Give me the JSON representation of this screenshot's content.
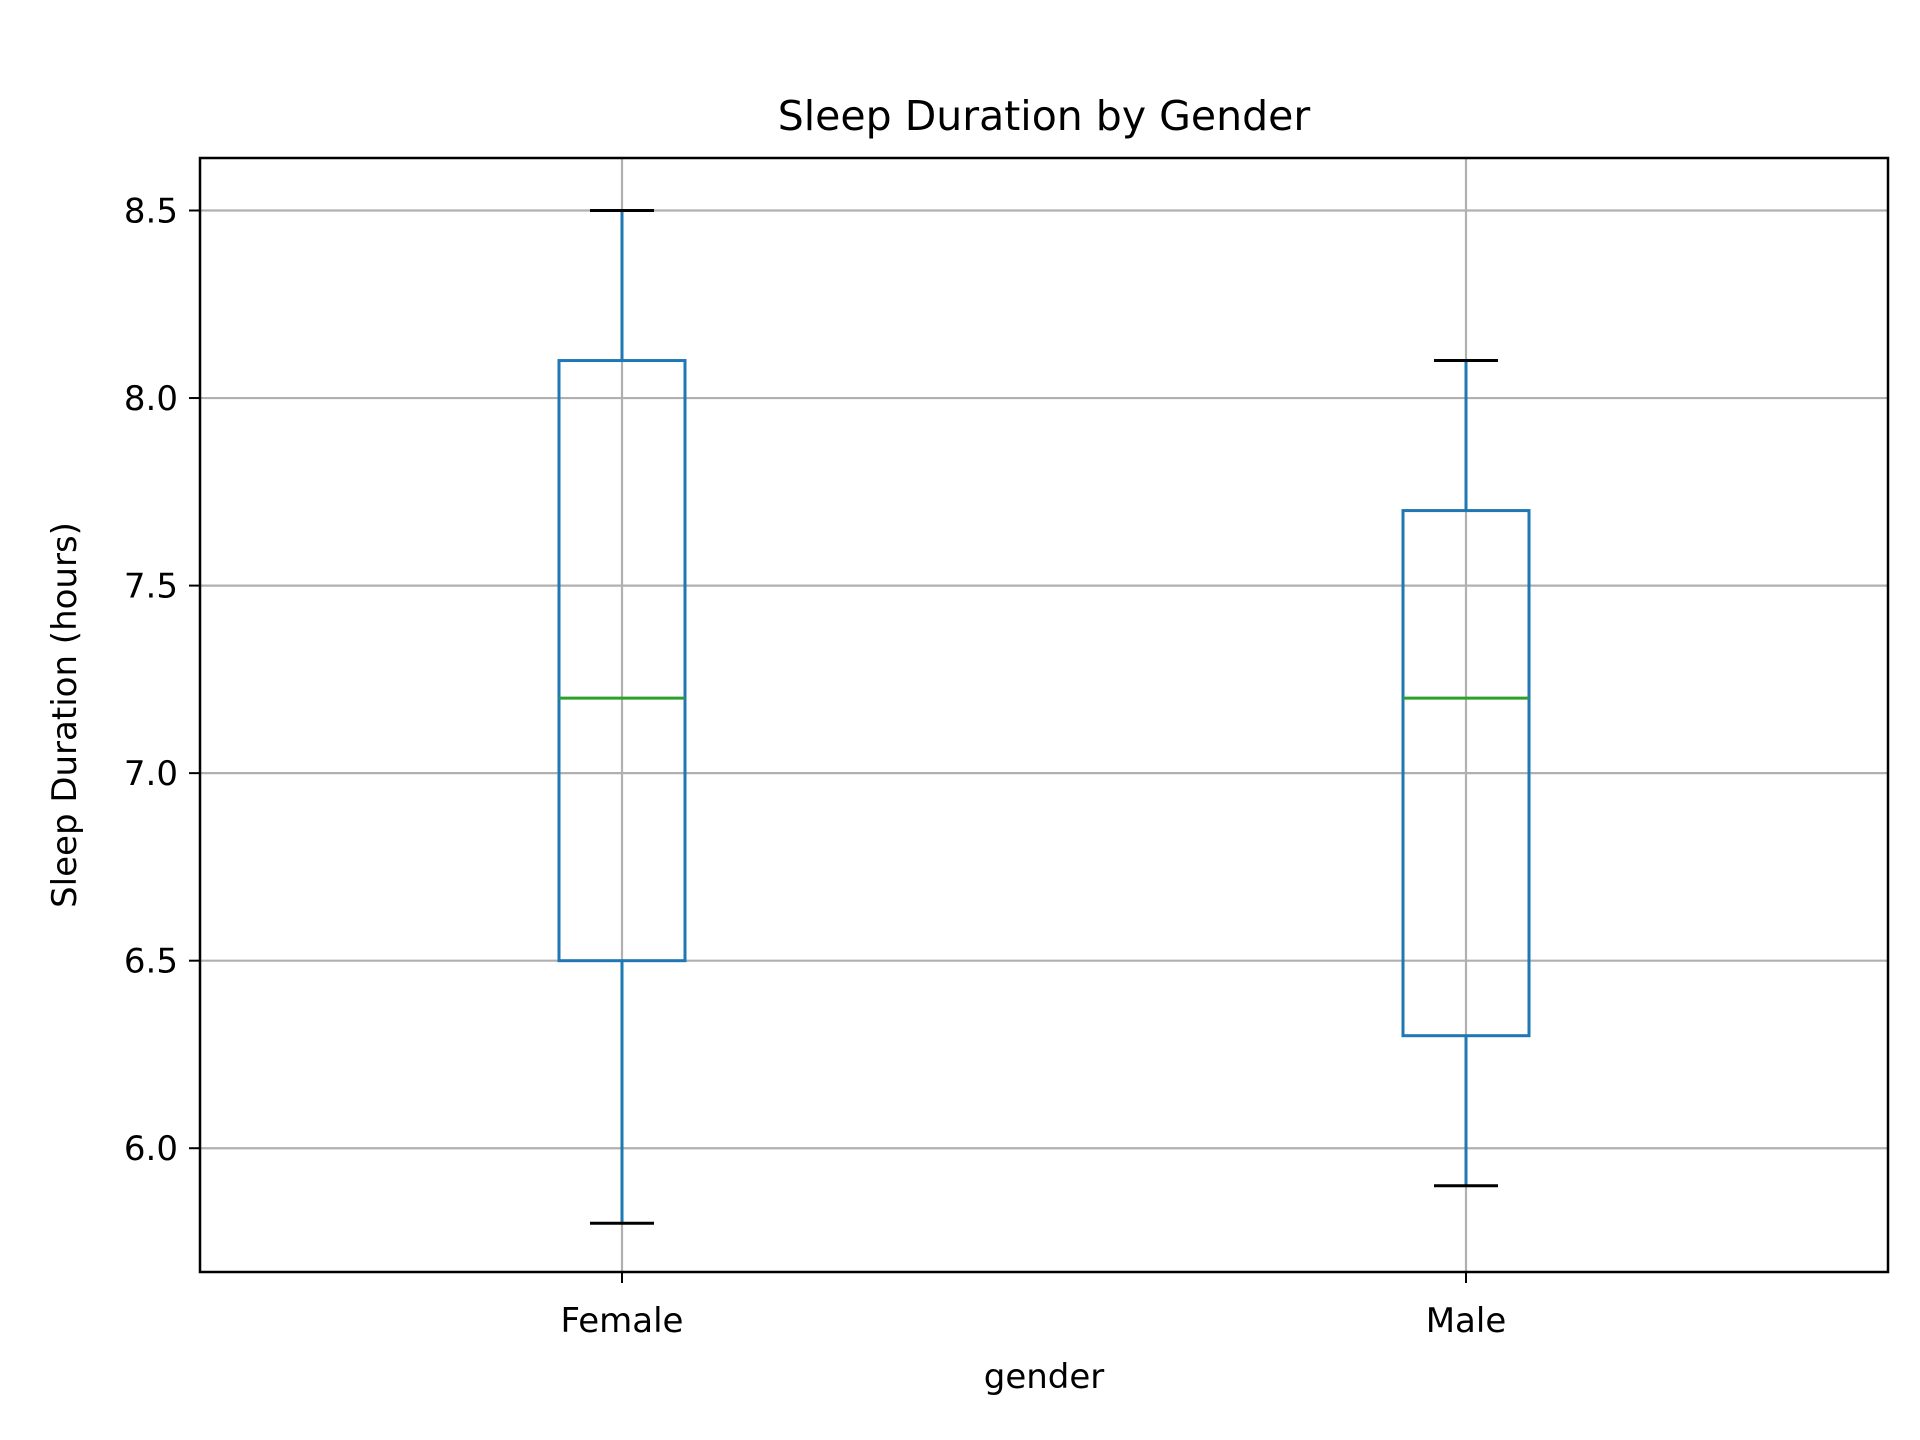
{
  "chart_data": {
    "type": "box",
    "title": "Sleep Duration by Gender",
    "xlabel": "gender",
    "ylabel": "Sleep Duration (hours)",
    "ylim": [
      5.67,
      8.64
    ],
    "yticks": [
      6.0,
      6.5,
      7.0,
      7.5,
      8.0,
      8.5
    ],
    "ytick_labels": [
      "6.0",
      "6.5",
      "7.0",
      "7.5",
      "8.0",
      "8.5"
    ],
    "grid": true,
    "categories": [
      "Female",
      "Male"
    ],
    "boxes": [
      {
        "category": "Female",
        "whisker_low": 5.8,
        "q1": 6.5,
        "median": 7.2,
        "q3": 8.1,
        "whisker_high": 8.5
      },
      {
        "category": "Male",
        "whisker_low": 5.9,
        "q1": 6.3,
        "median": 7.2,
        "q3": 7.7,
        "whisker_high": 8.1
      }
    ],
    "colors": {
      "box": "#1f77b4",
      "median": "#2ca02c",
      "cap": "#000000",
      "grid": "#b0b0b0",
      "frame": "#000000"
    }
  }
}
